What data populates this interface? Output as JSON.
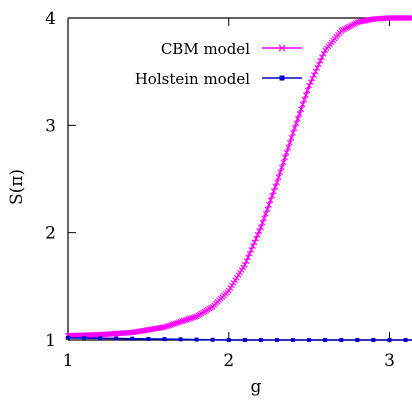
{
  "chart_data": {
    "type": "line",
    "ylabel": "S(π)",
    "xlabel": "g",
    "xlim": [
      1,
      3.14
    ],
    "ylim": [
      1,
      4
    ],
    "xticks": [
      1,
      2,
      3
    ],
    "yticks": [
      1,
      2,
      3,
      4
    ],
    "grid": false,
    "legend_position": "top-right",
    "series": [
      {
        "name": "CBM model",
        "color": "#ff00ff",
        "marker": "x-cross",
        "points": [
          [
            1.0,
            1.04
          ],
          [
            1.2,
            1.05
          ],
          [
            1.4,
            1.07
          ],
          [
            1.6,
            1.12
          ],
          [
            1.8,
            1.22
          ],
          [
            1.9,
            1.31
          ],
          [
            2.0,
            1.46
          ],
          [
            2.1,
            1.7
          ],
          [
            2.2,
            2.05
          ],
          [
            2.3,
            2.47
          ],
          [
            2.4,
            2.93
          ],
          [
            2.5,
            3.37
          ],
          [
            2.6,
            3.7
          ],
          [
            2.7,
            3.88
          ],
          [
            2.8,
            3.96
          ],
          [
            2.9,
            3.99
          ],
          [
            3.0,
            4.0
          ],
          [
            3.14,
            4.0
          ]
        ]
      },
      {
        "name": "Holstein model",
        "color": "#0000cc",
        "marker": "square",
        "points": [
          [
            1.0,
            1.02
          ],
          [
            1.5,
            1.01
          ],
          [
            2.0,
            1.0
          ],
          [
            3.14,
            1.0
          ]
        ]
      }
    ]
  }
}
